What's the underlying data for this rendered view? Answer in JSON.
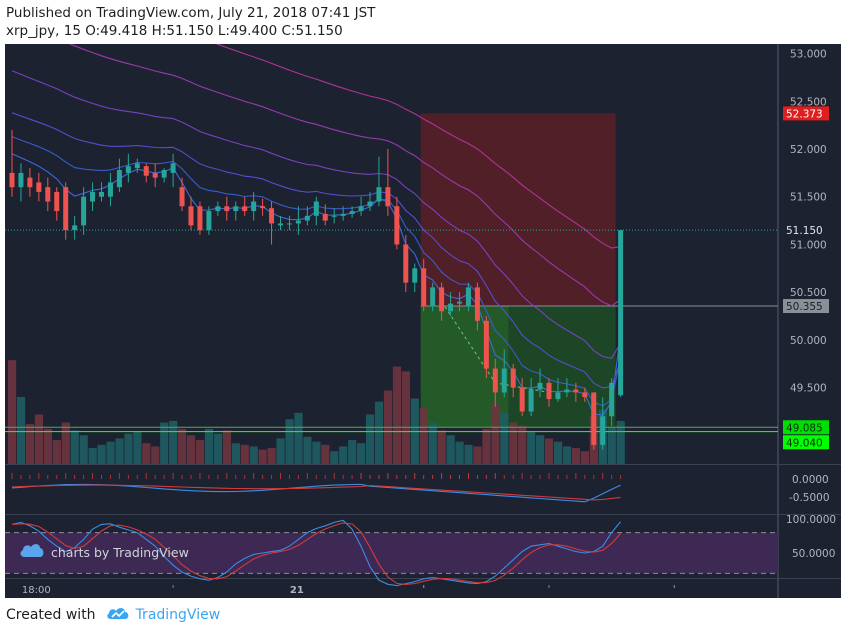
{
  "header": {
    "line1": "Published on TradingView.com, July 21, 2018 07:41 JST",
    "line2": "xrp_jpy, 15 O:49.418 H:51.150 L:49.400 C:51.150"
  },
  "footer": {
    "created_with": "Created with",
    "brand": "TradingView"
  },
  "watermark": "charts by TradingView",
  "colors": {
    "background": "#1c2230",
    "up": "#26a69a",
    "down": "#ef5350",
    "stop_zone": "#5a1e26",
    "target_zone": "#1d4a26",
    "level_line": "#00ff00",
    "brand": "#39a6f2"
  },
  "chart_data": [
    {
      "type": "candlestick",
      "symbol": "xrp_jpy",
      "interval": "15",
      "ohlc_last": {
        "open": 49.418,
        "high": 51.15,
        "low": 49.4,
        "close": 51.15
      },
      "ylim": [
        48.7,
        53.1
      ],
      "y_ticks": [
        "53.000",
        "52.500",
        "52.000",
        "51.500",
        "51.000",
        "50.500",
        "50.000",
        "49.500"
      ],
      "x_ticks": [
        "18:00",
        "21"
      ],
      "candles": [
        [
          51.75,
          51.6,
          52.2,
          51.5
        ],
        [
          51.6,
          51.75,
          51.85,
          51.45
        ],
        [
          51.7,
          51.6,
          51.8,
          51.5
        ],
        [
          51.65,
          51.55,
          51.75,
          51.45
        ],
        [
          51.6,
          51.45,
          51.7,
          51.35
        ],
        [
          51.55,
          51.35,
          51.6,
          51.25
        ],
        [
          51.6,
          51.15,
          51.65,
          51.05
        ],
        [
          51.15,
          51.2,
          51.3,
          51.05
        ],
        [
          51.2,
          51.5,
          51.6,
          51.1
        ],
        [
          51.45,
          51.55,
          51.65,
          51.35
        ],
        [
          51.5,
          51.55,
          51.65,
          51.45
        ],
        [
          51.5,
          51.65,
          51.75,
          51.4
        ],
        [
          51.6,
          51.78,
          51.9,
          51.55
        ],
        [
          51.75,
          51.82,
          51.95,
          51.65
        ],
        [
          51.8,
          51.85,
          51.9,
          51.75
        ],
        [
          51.82,
          51.72,
          51.85,
          51.65
        ],
        [
          51.75,
          51.7,
          51.85,
          51.6
        ],
        [
          51.7,
          51.78,
          51.8,
          51.65
        ],
        [
          51.75,
          51.85,
          51.95,
          51.6
        ],
        [
          51.6,
          51.4,
          51.7,
          51.35
        ],
        [
          51.4,
          51.2,
          51.5,
          51.15
        ],
        [
          51.4,
          51.15,
          51.45,
          51.1
        ],
        [
          51.15,
          51.35,
          51.4,
          51.1
        ],
        [
          51.35,
          51.4,
          51.45,
          51.3
        ],
        [
          51.4,
          51.35,
          51.5,
          51.25
        ],
        [
          51.35,
          51.4,
          51.45,
          51.25
        ],
        [
          51.4,
          51.35,
          51.5,
          51.3
        ],
        [
          51.35,
          51.45,
          51.55,
          51.25
        ],
        [
          51.4,
          51.38,
          51.48,
          51.3
        ],
        [
          51.38,
          51.22,
          51.45,
          51.0
        ],
        [
          51.2,
          51.22,
          51.3,
          51.15
        ],
        [
          51.22,
          51.22,
          51.3,
          51.15
        ],
        [
          51.22,
          51.25,
          51.4,
          51.1
        ],
        [
          51.25,
          51.3,
          51.4,
          51.2
        ],
        [
          51.3,
          51.45,
          51.5,
          51.2
        ],
        [
          51.32,
          51.25,
          51.42,
          51.2
        ],
        [
          51.3,
          51.3,
          51.38,
          51.22
        ],
        [
          51.3,
          51.32,
          51.4,
          51.25
        ],
        [
          51.32,
          51.35,
          51.4,
          51.28
        ],
        [
          51.35,
          51.4,
          51.5,
          51.3
        ],
        [
          51.4,
          51.45,
          51.55,
          51.35
        ],
        [
          51.45,
          51.6,
          51.92,
          51.4
        ],
        [
          51.6,
          51.4,
          52.0,
          51.3
        ],
        [
          51.4,
          51.0,
          51.5,
          50.95
        ],
        [
          51.0,
          50.6,
          51.1,
          50.5
        ],
        [
          50.6,
          50.75,
          50.8,
          50.5
        ],
        [
          50.75,
          50.35,
          50.85,
          50.3
        ],
        [
          50.35,
          50.55,
          50.6,
          50.3
        ],
        [
          50.55,
          50.3,
          50.6,
          50.2
        ],
        [
          50.3,
          50.38,
          50.5,
          50.25
        ],
        [
          50.38,
          50.4,
          50.5,
          50.3
        ],
        [
          50.35,
          50.55,
          50.6,
          50.3
        ],
        [
          50.55,
          50.2,
          50.6,
          50.1
        ],
        [
          50.2,
          49.7,
          50.25,
          49.6
        ],
        [
          49.7,
          49.45,
          49.8,
          49.3
        ],
        [
          49.45,
          49.7,
          49.9,
          49.4
        ],
        [
          49.7,
          49.5,
          49.75,
          49.4
        ],
        [
          49.5,
          49.25,
          49.6,
          49.2
        ],
        [
          49.25,
          49.48,
          49.6,
          49.2
        ],
        [
          49.48,
          49.55,
          49.7,
          49.4
        ],
        [
          49.55,
          49.38,
          49.6,
          49.3
        ],
        [
          49.38,
          49.45,
          49.6,
          49.35
        ],
        [
          49.45,
          49.48,
          49.6,
          49.4
        ],
        [
          49.48,
          49.45,
          49.55,
          49.35
        ],
        [
          49.45,
          49.4,
          49.5,
          49.35
        ],
        [
          49.45,
          48.9,
          49.45,
          48.85
        ],
        [
          48.9,
          49.2,
          49.4,
          48.85
        ],
        [
          49.2,
          49.55,
          49.6,
          49.1
        ],
        [
          49.42,
          51.15,
          51.15,
          49.4
        ]
      ],
      "volumes": [
        6.5,
        4.2,
        2.5,
        3.1,
        2.2,
        1.5,
        2.6,
        2.1,
        1.8,
        1.0,
        1.2,
        1.4,
        1.6,
        1.9,
        2.0,
        1.3,
        1.1,
        2.6,
        2.7,
        2.2,
        1.8,
        1.5,
        2.2,
        1.9,
        2.1,
        1.3,
        1.2,
        1.1,
        0.9,
        1.0,
        1.6,
        2.8,
        3.2,
        1.7,
        1.4,
        1.2,
        0.8,
        1.1,
        1.5,
        1.3,
        3.1,
        3.9,
        4.6,
        6.1,
        5.8,
        4.1,
        3.5,
        2.6,
        2.1,
        1.8,
        1.4,
        1.2,
        1.1,
        2.2,
        3.8,
        3.2,
        2.6,
        2.4,
        2.0,
        1.8,
        1.6,
        1.4,
        1.1,
        1.0,
        0.8,
        3.0,
        3.4,
        2.3,
        2.7
      ],
      "position_tool": {
        "stop_price": 52.373,
        "entry_price": 50.355,
        "target_price": 49.085,
        "stop_label": "52.373",
        "entry_label": "50.355",
        "target_label": "49.085"
      },
      "price_labels": {
        "last_close": "51.150",
        "support": "49.040"
      },
      "horizontal_line": 49.04
    },
    {
      "type": "line",
      "name": "oscillator",
      "y_ticks": [
        "0.0000",
        "-0.5000"
      ],
      "histogram_note": "red histogram bars near zero"
    },
    {
      "type": "line",
      "name": "stochastic",
      "y_ticks": [
        "100.0000",
        "50.0000"
      ],
      "bands": [
        80,
        20
      ],
      "ylim": [
        0,
        100
      ]
    }
  ]
}
